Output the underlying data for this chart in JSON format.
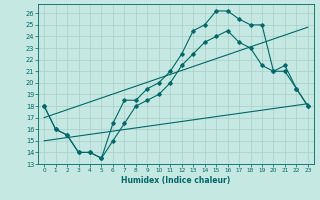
{
  "bg_color": "#c6e8e2",
  "grid_color": "#a8cfc8",
  "line_color": "#006868",
  "marker_color": "#006868",
  "xlabel": "Humidex (Indice chaleur)",
  "xlim": [
    -0.5,
    23.5
  ],
  "ylim": [
    13,
    26.8
  ],
  "yticks": [
    13,
    14,
    15,
    16,
    17,
    18,
    19,
    20,
    21,
    22,
    23,
    24,
    25,
    26
  ],
  "xticks": [
    0,
    1,
    2,
    3,
    4,
    5,
    6,
    7,
    8,
    9,
    10,
    11,
    12,
    13,
    14,
    15,
    16,
    17,
    18,
    19,
    20,
    21,
    22,
    23
  ],
  "line1_x": [
    0,
    1,
    2,
    3,
    4,
    5,
    6,
    7,
    8,
    9,
    10,
    11,
    12,
    13,
    14,
    15,
    16,
    17,
    18,
    19,
    20,
    21,
    22,
    23
  ],
  "line1_y": [
    18,
    16,
    15.5,
    14,
    14,
    13.5,
    16.5,
    18.5,
    18.5,
    19.5,
    20,
    21,
    22.5,
    24.5,
    25,
    26.2,
    26.2,
    25.5,
    25,
    25,
    21,
    21.5,
    19.5,
    18
  ],
  "line2_x": [
    0,
    1,
    2,
    3,
    4,
    5,
    6,
    7,
    8,
    9,
    10,
    11,
    12,
    13,
    14,
    15,
    16,
    17,
    18,
    19,
    20,
    21,
    22,
    23
  ],
  "line2_y": [
    18,
    16,
    15.5,
    14,
    14,
    13.5,
    15,
    16.5,
    18,
    18.5,
    19,
    20,
    21.5,
    22.5,
    23.5,
    24,
    24.5,
    23.5,
    23,
    21.5,
    21,
    21,
    19.5,
    18
  ],
  "line3_x": [
    0,
    23
  ],
  "line3_y": [
    15.0,
    18.2
  ],
  "line4_x": [
    0,
    23
  ],
  "line4_y": [
    17.0,
    24.8
  ]
}
